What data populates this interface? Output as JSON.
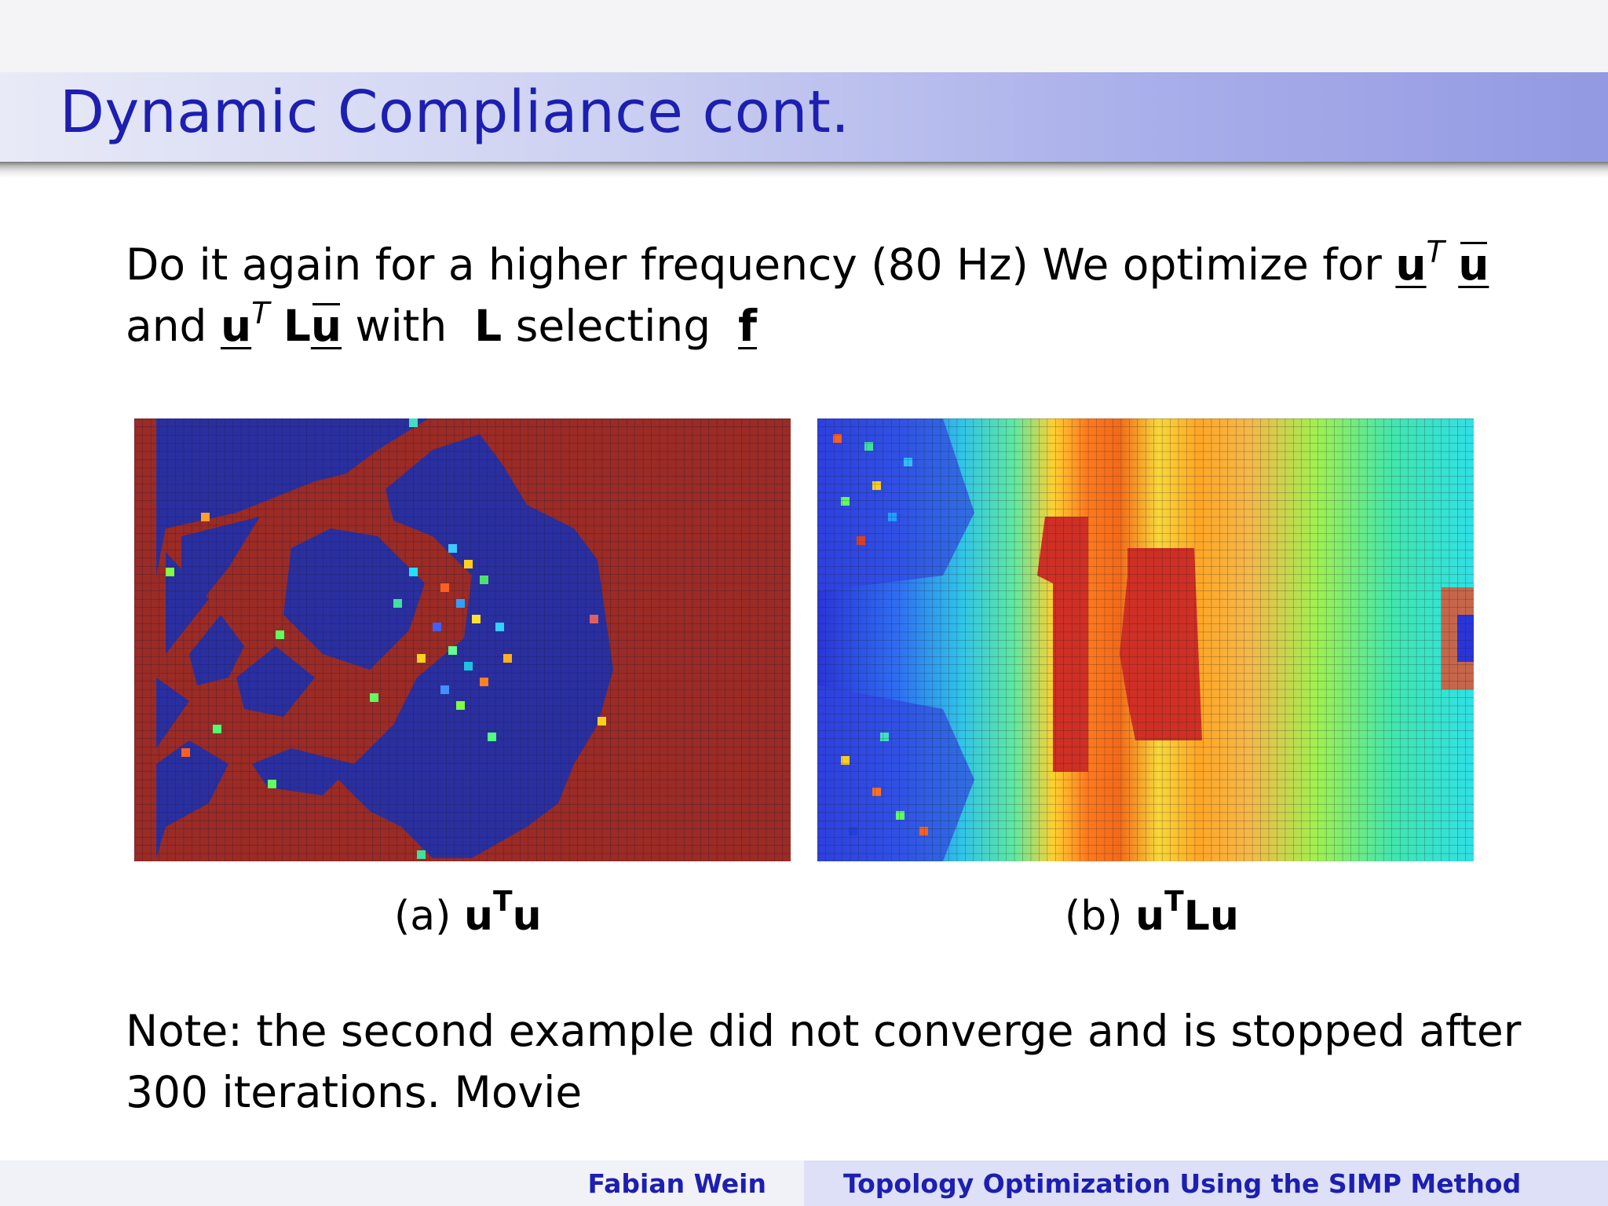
{
  "slide": {
    "title": "Dynamic Compliance cont.",
    "intro": {
      "t1": "Do it again for a higher frequency (80 Hz) We optimize for ",
      "u": "u",
      "T": "T",
      "ubar": "u",
      "t2": "and ",
      "L": "L",
      "t3": " with ",
      "t4": " selecting ",
      "f": "f"
    },
    "figures": [
      {
        "prefix": "(a) ",
        "u1": "u",
        "sup": "T",
        "u2": "u"
      },
      {
        "prefix": "(b) ",
        "u1": "u",
        "sup": "T",
        "mid": "L",
        "u2": "u"
      }
    ],
    "note": {
      "line1": "Note: the second example did not converge and is stopped after",
      "line2": "300 iterations. Movie"
    }
  },
  "footer": {
    "author": "Fabian Wein",
    "title": "Topology Optimization Using the SIMP Method"
  },
  "colors": {
    "title_blue": "#1c1fb0",
    "density_solid": "#9b2b24",
    "density_void": "#2a2fa0"
  }
}
